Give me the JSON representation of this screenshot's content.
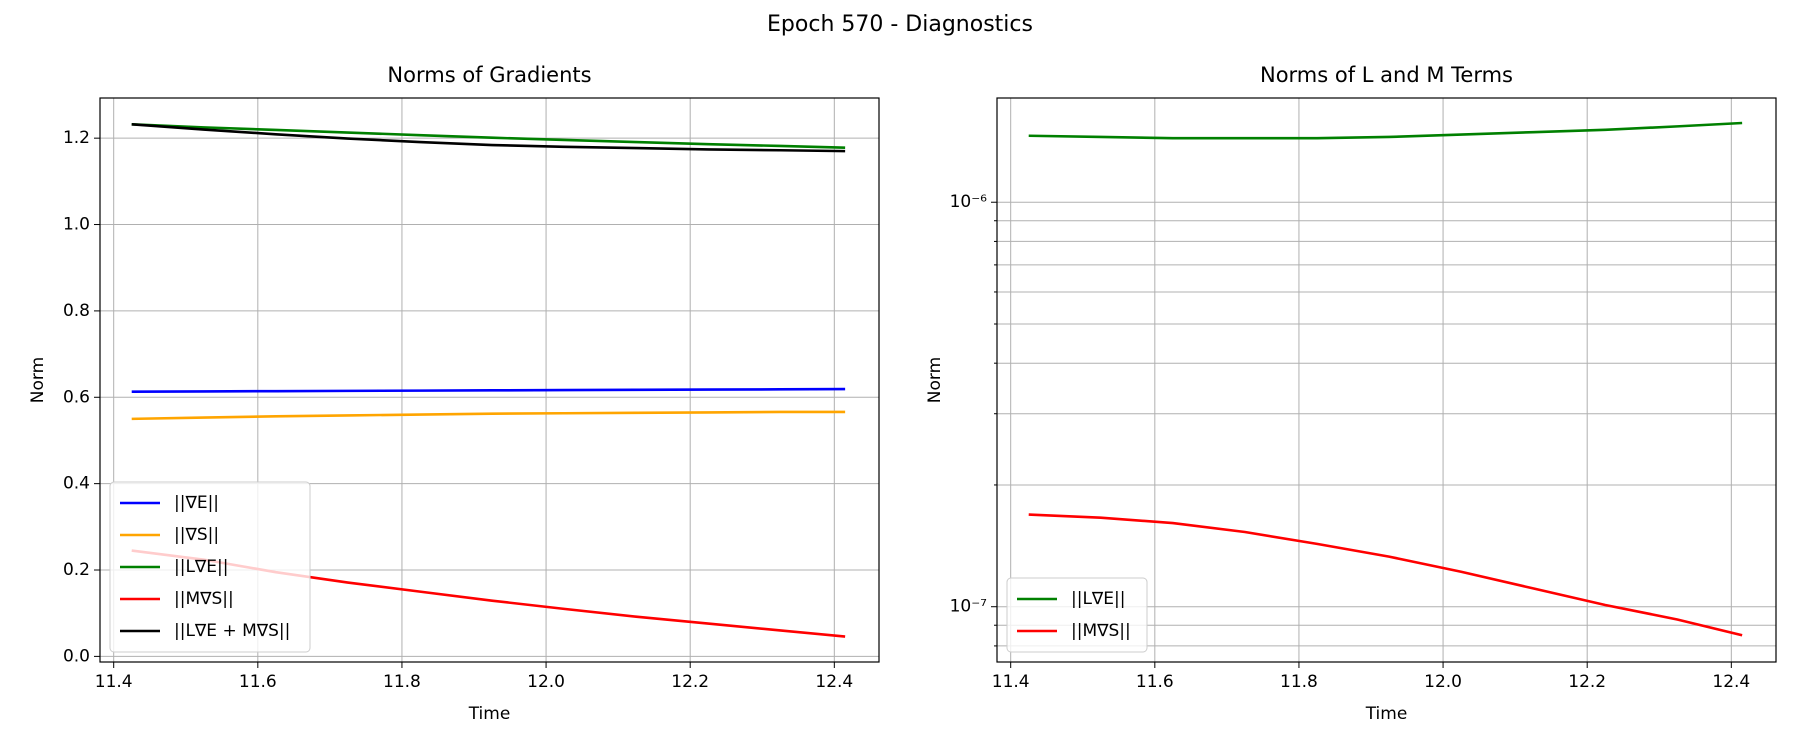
{
  "title": "Epoch 570 - Diagnostics",
  "chart_data": [
    {
      "type": "line",
      "title": "Norms of Gradients",
      "xlabel": "Time",
      "ylabel": "Norm",
      "x": [
        11.425,
        11.525,
        11.625,
        11.725,
        11.825,
        11.925,
        12.025,
        12.125,
        12.225,
        12.325,
        12.415
      ],
      "series": [
        {
          "name": "||∇E||",
          "color": "#0000ff",
          "values": [
            0.613,
            0.6136,
            0.6142,
            0.6148,
            0.6154,
            0.616,
            0.6166,
            0.6172,
            0.6178,
            0.6184,
            0.619
          ]
        },
        {
          "name": "||∇S||",
          "color": "#ffa500",
          "values": [
            0.55,
            0.553,
            0.556,
            0.558,
            0.56,
            0.562,
            0.563,
            0.564,
            0.565,
            0.566,
            0.566
          ]
        },
        {
          "name": "||L∇E||",
          "color": "#008000",
          "values": [
            1.232,
            1.225,
            1.219,
            1.213,
            1.207,
            1.201,
            1.196,
            1.191,
            1.186,
            1.182,
            1.178
          ]
        },
        {
          "name": "||M∇S||",
          "color": "#ff0000",
          "values": [
            0.245,
            0.224,
            0.195,
            0.171,
            0.15,
            0.129,
            0.11,
            0.092,
            0.076,
            0.06,
            0.046
          ]
        },
        {
          "name": "||L∇E + M∇S||",
          "color": "#000000",
          "values": [
            1.232,
            1.22,
            1.209,
            1.199,
            1.191,
            1.184,
            1.18,
            1.177,
            1.174,
            1.172,
            1.17
          ]
        }
      ],
      "xlim": [
        11.381,
        12.462
      ],
      "ylim": [
        -0.013,
        1.293
      ],
      "xticks": [
        11.4,
        11.6,
        11.8,
        {
          "value": 12,
          "label": "12.0"
        },
        12.2,
        12.4
      ],
      "yticks": [
        {
          "value": 0,
          "label": "0.0"
        },
        0.2,
        0.4,
        0.6,
        0.8,
        {
          "value": 1,
          "label": "1.0"
        },
        1.2
      ],
      "grid": true,
      "legend": "lower left"
    },
    {
      "type": "line",
      "title": "Norms of L and M Terms",
      "xlabel": "Time",
      "ylabel": "Norm",
      "yscale": "log",
      "x": [
        11.425,
        11.525,
        11.625,
        11.725,
        11.825,
        11.925,
        12.025,
        12.125,
        12.225,
        12.325,
        12.415
      ],
      "series": [
        {
          "name": "||L∇E||",
          "color": "#008000",
          "values": [
            1.46e-06,
            1.45e-06,
            1.44e-06,
            1.44e-06,
            1.44e-06,
            1.45e-06,
            1.47e-06,
            1.49e-06,
            1.51e-06,
            1.54e-06,
            1.57e-06
          ]
        },
        {
          "name": "||M∇S||",
          "color": "#ff0000",
          "values": [
            1.69e-07,
            1.66e-07,
            1.61e-07,
            1.53e-07,
            1.43e-07,
            1.33e-07,
            1.22e-07,
            1.11e-07,
            1.01e-07,
            9.3e-08,
            8.5e-08
          ]
        }
      ],
      "xlim": [
        11.381,
        12.462
      ],
      "ylim": [
        7.3e-08,
        1.81e-06
      ],
      "xticks": [
        11.4,
        11.6,
        11.8,
        {
          "value": 12,
          "label": "12.0"
        },
        12.2,
        12.4
      ],
      "yticks": [
        {
          "value": 1e-07,
          "label": "10⁻⁷"
        },
        {
          "value": 1e-06,
          "label": "10⁻⁶"
        }
      ],
      "yminorticks": [
        8e-08,
        9e-08,
        2e-07,
        3e-07,
        4e-07,
        5e-07,
        6e-07,
        7e-07,
        8e-07,
        9e-07
      ],
      "grid": true,
      "legend": "lower left"
    }
  ]
}
